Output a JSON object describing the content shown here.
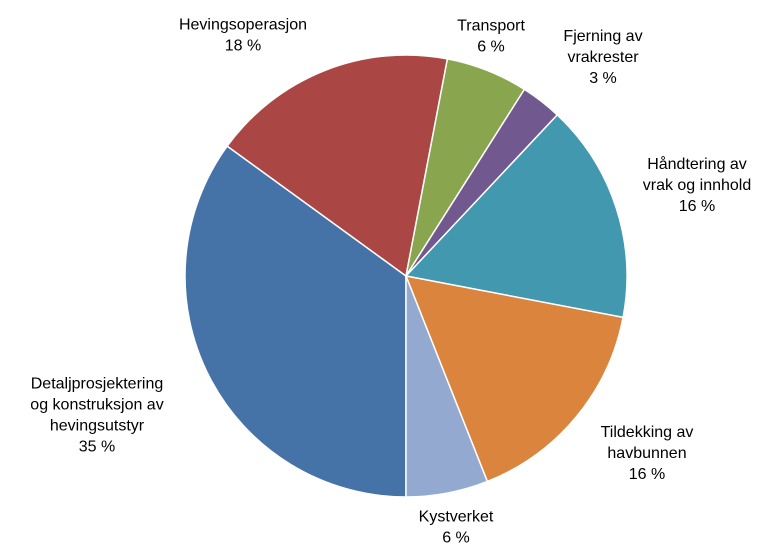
{
  "chart_data": {
    "type": "pie",
    "categories": [
      "Detaljprosjektering og konstruksjon av hevingsutstyr",
      "Hevingsoperasjon",
      "Transport",
      "Fjerning av vrakrester",
      "Håndtering av vrak og innhold",
      "Tildekking av havbunnen",
      "Kystverket"
    ],
    "values": [
      35,
      18,
      6,
      3,
      16,
      16,
      6
    ],
    "value_labels": [
      "35 %",
      "18 %",
      "6 %",
      "3 %",
      "16 %",
      "16 %",
      "6 %"
    ],
    "colors": [
      "#4572a7",
      "#aa4643",
      "#89a54e",
      "#71588f",
      "#4198af",
      "#db843d",
      "#93a9cf"
    ]
  }
}
